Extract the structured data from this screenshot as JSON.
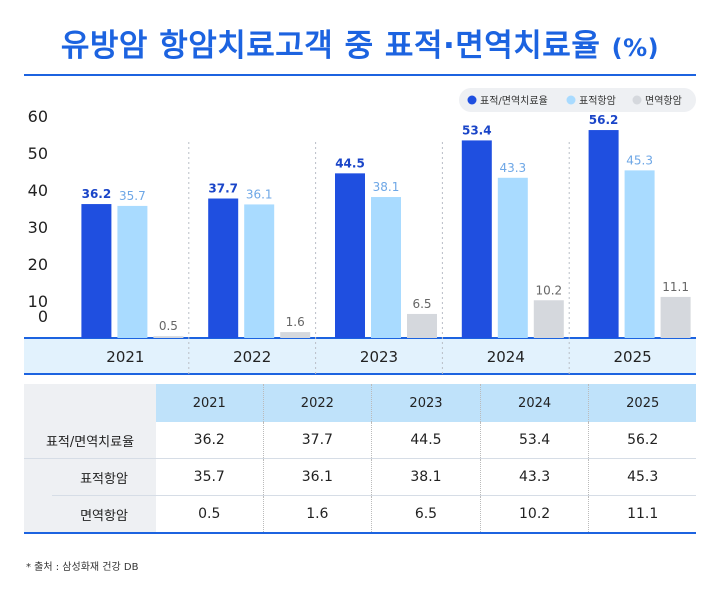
{
  "header": {
    "title": "유방암 항암치료고객 중 표적·면역치료율",
    "unit": "(%)"
  },
  "chart_data": {
    "type": "bar",
    "categories": [
      "2021",
      "2022",
      "2023",
      "2024",
      "2025"
    ],
    "series": [
      {
        "name": "표적/면역치료율",
        "values": [
          36.2,
          37.7,
          44.5,
          53.4,
          56.2
        ],
        "color": "#1f4fe0",
        "label_color": "#1a45c8"
      },
      {
        "name": "표적항암",
        "values": [
          35.7,
          36.1,
          38.1,
          43.3,
          45.3
        ],
        "color": "#a9dbff",
        "label_color": "#6ea7e6"
      },
      {
        "name": "면역항암",
        "values": [
          0.5,
          1.6,
          6.5,
          10.2,
          11.1
        ],
        "color": "#d5d8dd",
        "label_color": "#666666"
      }
    ],
    "yticks": [
      "60",
      "50",
      "40",
      "30",
      "20",
      "10",
      "0"
    ],
    "ylim": [
      0,
      60
    ],
    "legend_position": "top-right",
    "grid": "vertical dotted separators"
  },
  "table": {
    "columns": [
      "2021",
      "2022",
      "2023",
      "2024",
      "2025"
    ],
    "rows": [
      {
        "label": "표적/면역치료율",
        "values": [
          "36.2",
          "37.7",
          "44.5",
          "53.4",
          "56.2"
        ]
      },
      {
        "label": "표적항암",
        "values": [
          "35.7",
          "36.1",
          "38.1",
          "43.3",
          "45.3"
        ]
      },
      {
        "label": "면역항암",
        "values": [
          "0.5",
          "1.6",
          "6.5",
          "10.2",
          "11.1"
        ]
      }
    ]
  },
  "footer": {
    "source": "* 출처 : 삼성화재 건강 DB"
  }
}
